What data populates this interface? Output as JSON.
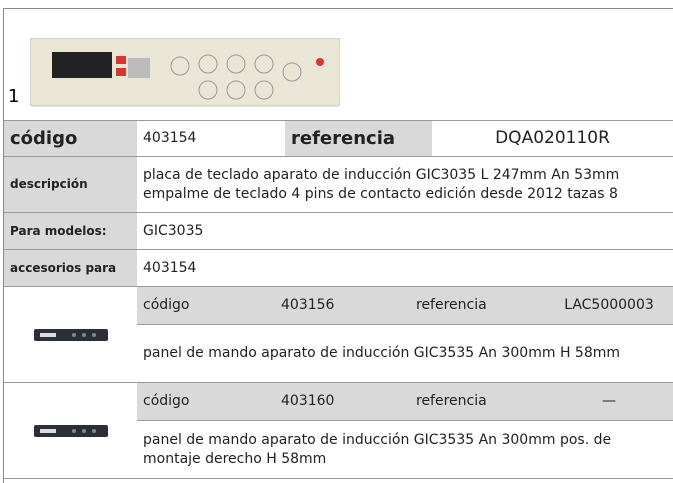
{
  "image_number": "1",
  "main": {
    "codigo_label": "código",
    "codigo": "403154",
    "referencia_label": "referencia",
    "referencia": "DQA020110R"
  },
  "rows": [
    {
      "label": "descripción",
      "value": "placa de teclado  aparato de inducción GIC3035 L 247mm An 53mm empalme de teclado 4 pins de contacto edición desde 2012 tazas 8"
    },
    {
      "label": "Para modelos:",
      "value": "GIC3035"
    },
    {
      "label": "accesorios para",
      "value": "403154"
    }
  ],
  "accessories": [
    {
      "codigo_label": "código",
      "codigo": "403156",
      "referencia_label": "referencia",
      "referencia": "LAC5000003",
      "description": "panel de mando  aparato de inducción GIC3535 An 300mm H 58mm"
    },
    {
      "codigo_label": "código",
      "codigo": "403160",
      "referencia_label": "referencia",
      "referencia": "—",
      "description": "panel de mando  aparato de inducción GIC3535 An 300mm pos. de montaje derecho H 58mm"
    }
  ]
}
